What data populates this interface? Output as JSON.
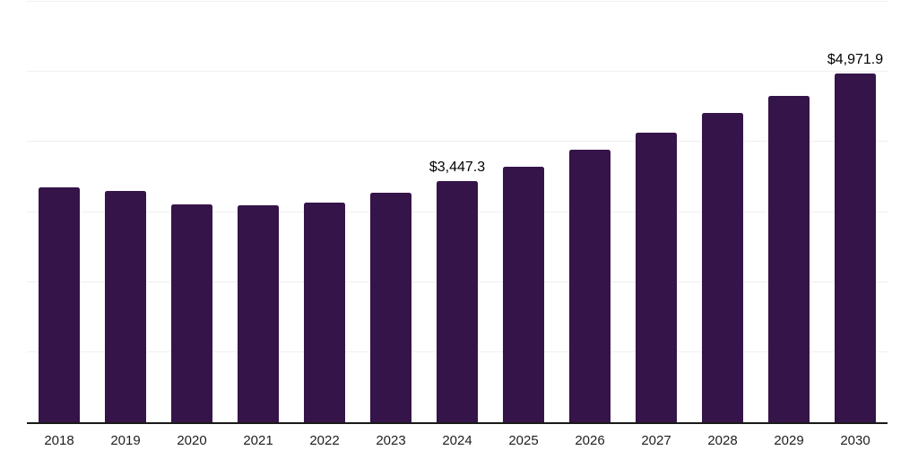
{
  "chart_data": {
    "type": "bar",
    "title": "",
    "xlabel": "",
    "ylabel": "",
    "categories": [
      "2018",
      "2019",
      "2020",
      "2021",
      "2022",
      "2023",
      "2024",
      "2025",
      "2026",
      "2027",
      "2028",
      "2029",
      "2030"
    ],
    "values": [
      3350,
      3295,
      3115,
      3090,
      3130,
      3275,
      3447.3,
      3650,
      3885,
      4135,
      4420,
      4655,
      4971.9
    ],
    "data_labels": [
      {
        "category": "2024",
        "text": "$3,447.3"
      },
      {
        "category": "2030",
        "text": "$4,971.9"
      }
    ],
    "ylim": [
      0,
      6000
    ],
    "gridline_step": 1000,
    "grid": "horizontal-only",
    "legend": "none",
    "y_axis_tick_labels_visible": false,
    "bar_color": "#351449",
    "axis_color": "#1a1a1a",
    "gridline_color": "#f0f0f0",
    "tick_label_color": "#1f1f1f",
    "value_label_color": "#000000"
  }
}
